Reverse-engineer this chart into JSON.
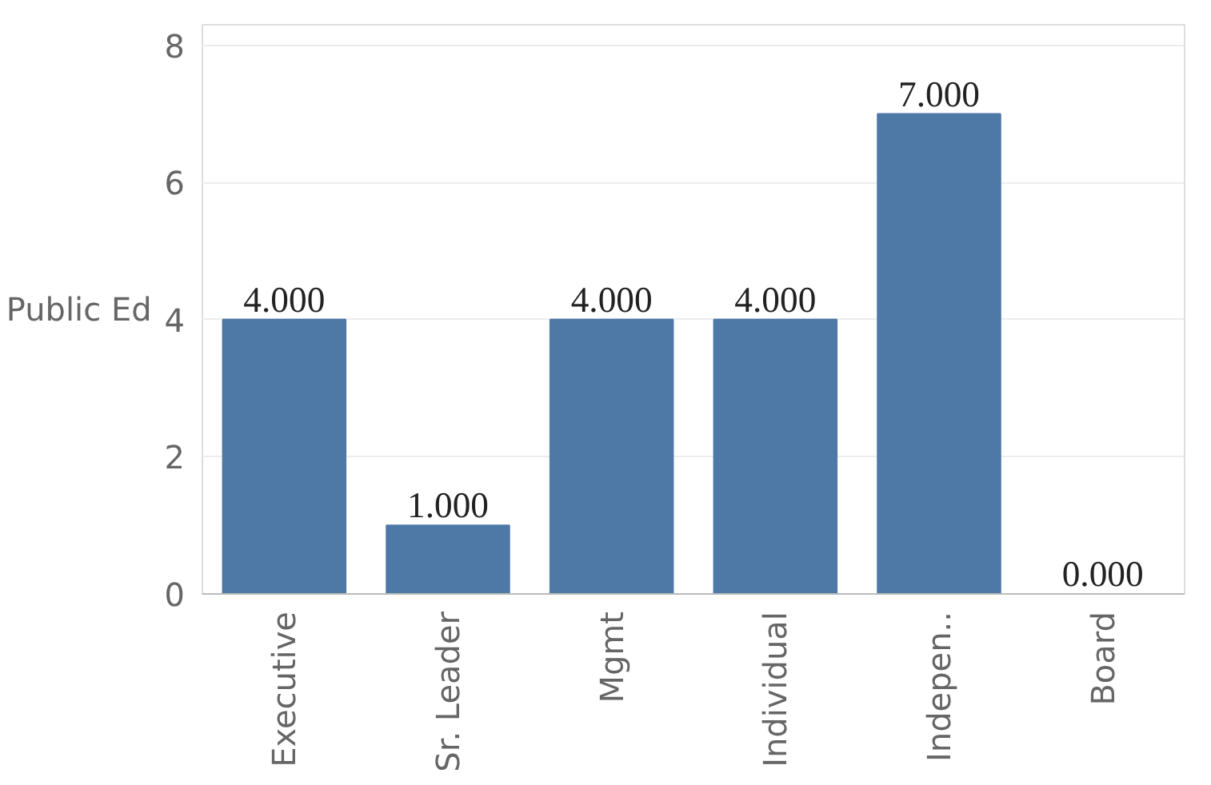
{
  "chart_data": {
    "type": "bar",
    "ylabel": "Public Ed",
    "categories": [
      "Executive",
      "Sr. Leader",
      "Mgmt",
      "Individual",
      "Indepen..",
      "Board"
    ],
    "values": [
      4,
      1,
      4,
      4,
      7,
      0
    ],
    "value_labels": [
      "4.000",
      "1.000",
      "4.000",
      "4.000",
      "7.000",
      "0.000"
    ],
    "color": "#4e79a7",
    "ylim": [
      0,
      8.3
    ],
    "yticks": [
      0,
      2,
      4,
      6,
      8
    ],
    "grid": "y"
  }
}
